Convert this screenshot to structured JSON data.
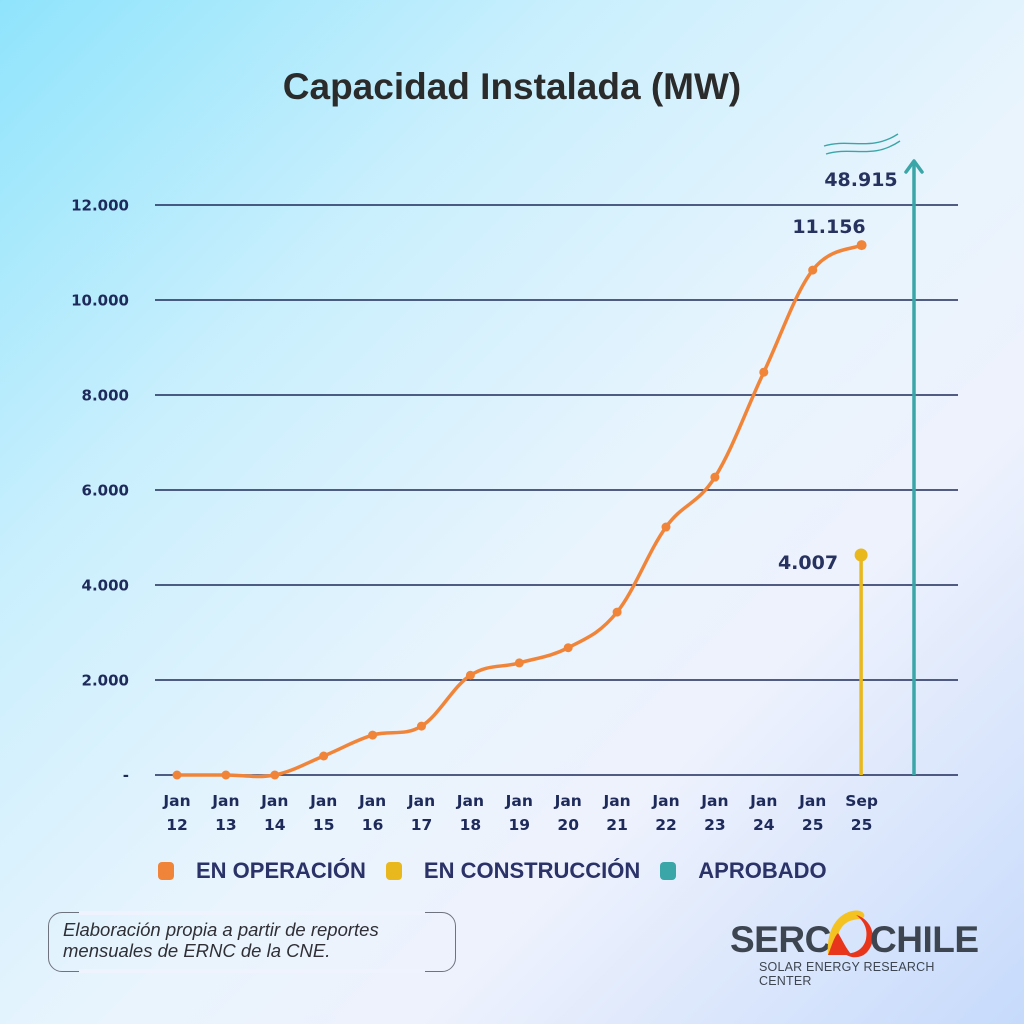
{
  "chart_data": {
    "type": "line",
    "title": "Capacidad Instalada (MW)",
    "xlabel": "",
    "ylabel": "",
    "ylim": [
      0,
      12000
    ],
    "yticks": [
      0,
      2000,
      4000,
      6000,
      8000,
      10000,
      12000
    ],
    "ytick_labels": [
      "-",
      "2.000",
      "4.000",
      "6.000",
      "8.000",
      "10.000",
      "12.000"
    ],
    "grid": true,
    "categories": [
      [
        "Jan",
        "12"
      ],
      [
        "Jan",
        "13"
      ],
      [
        "Jan",
        "14"
      ],
      [
        "Jan",
        "15"
      ],
      [
        "Jan",
        "16"
      ],
      [
        "Jan",
        "17"
      ],
      [
        "Jan",
        "18"
      ],
      [
        "Jan",
        "19"
      ],
      [
        "Jan",
        "20"
      ],
      [
        "Jan",
        "21"
      ],
      [
        "Jan",
        "22"
      ],
      [
        "Jan",
        "23"
      ],
      [
        "Jan",
        "24"
      ],
      [
        "Jan",
        "25"
      ],
      [
        "Sep",
        "25"
      ]
    ],
    "series": [
      {
        "name": "EN OPERACIÓN",
        "color": "#f0853a",
        "style": "smooth-line-with-markers",
        "values": [
          0,
          0,
          0,
          400,
          840,
          1030,
          2100,
          2360,
          2680,
          3430,
          5220,
          6270,
          8480,
          10630,
          11156
        ]
      },
      {
        "name": "EN CONSTRUCCIÓN",
        "color": "#e8b81c",
        "style": "stem",
        "category_index": 14,
        "value": 4007
      },
      {
        "name": "APROBADO",
        "color": "#3aa6a8",
        "style": "arrow-off-scale",
        "value": 48915
      }
    ],
    "annotations": [
      {
        "text": "11.156",
        "series": "EN OPERACIÓN"
      },
      {
        "text": "4.007",
        "series": "EN CONSTRUCCIÓN"
      },
      {
        "text": "48.915",
        "series": "APROBADO"
      }
    ],
    "legend": {
      "placement": "bottom",
      "entries": [
        {
          "label": "EN OPERACIÓN",
          "color": "#f0853a"
        },
        {
          "label": "EN CONSTRUCCIÓN",
          "color": "#e8b81c"
        },
        {
          "label": "APROBADO",
          "color": "#3aa6a8"
        }
      ]
    }
  },
  "source_note": {
    "line1": "Elaboración propia a partir de reportes",
    "line2": "mensuales de ERNC de la CNE."
  },
  "logo": {
    "word_left": "SERC",
    "word_right": "CHILE",
    "tagline": "SOLAR ENERGY RESEARCH CENTER"
  },
  "colors": {
    "gridline": "#1e2a5a",
    "text_dark": "#1e2a5a"
  }
}
